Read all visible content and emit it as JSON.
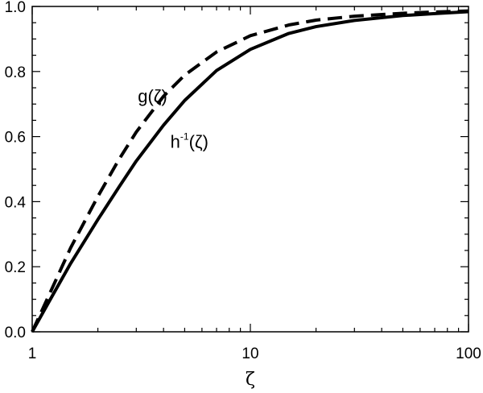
{
  "chart_data": {
    "type": "line",
    "xscale": "log",
    "xlim": [
      1,
      100
    ],
    "ylim": [
      0.0,
      1.0
    ],
    "xlabel": "ζ",
    "ylabel": "",
    "title": "",
    "grid": false,
    "x_ticks": [
      {
        "value": 1,
        "label": "1"
      },
      {
        "value": 10,
        "label": "10"
      },
      {
        "value": 100,
        "label": "100"
      }
    ],
    "y_ticks": [
      {
        "value": 0.0,
        "label": "0.0"
      },
      {
        "value": 0.2,
        "label": "0.2"
      },
      {
        "value": 0.4,
        "label": "0.4"
      },
      {
        "value": 0.6,
        "label": "0.6"
      },
      {
        "value": 0.8,
        "label": "0.8"
      },
      {
        "value": 1.0,
        "label": "1.0"
      }
    ],
    "series": [
      {
        "name": "g(ζ)",
        "style": "dashed",
        "color": "#000000",
        "x": [
          1,
          1.2,
          1.5,
          2,
          2.5,
          3,
          4,
          5,
          7,
          10,
          15,
          20,
          30,
          50,
          70,
          100
        ],
        "y": [
          0.0,
          0.116,
          0.258,
          0.416,
          0.53,
          0.614,
          0.724,
          0.789,
          0.86,
          0.91,
          0.943,
          0.958,
          0.97,
          0.979,
          0.983,
          0.986
        ]
      },
      {
        "name": "h⁻¹(ζ)",
        "style": "solid",
        "color": "#000000",
        "x": [
          1,
          1.2,
          1.5,
          2,
          2.5,
          3,
          4,
          5,
          7,
          10,
          15,
          20,
          30,
          50,
          70,
          100
        ],
        "y": [
          0.0,
          0.095,
          0.21,
          0.345,
          0.445,
          0.525,
          0.635,
          0.711,
          0.803,
          0.868,
          0.917,
          0.938,
          0.957,
          0.972,
          0.978,
          0.984
        ]
      }
    ],
    "annotations": [
      {
        "text": "g(ζ)",
        "x": 3.05,
        "y": 0.705
      },
      {
        "base": "h",
        "sup": "-1",
        "rest": "(ζ)",
        "x": 4.3,
        "y": 0.565
      }
    ]
  }
}
